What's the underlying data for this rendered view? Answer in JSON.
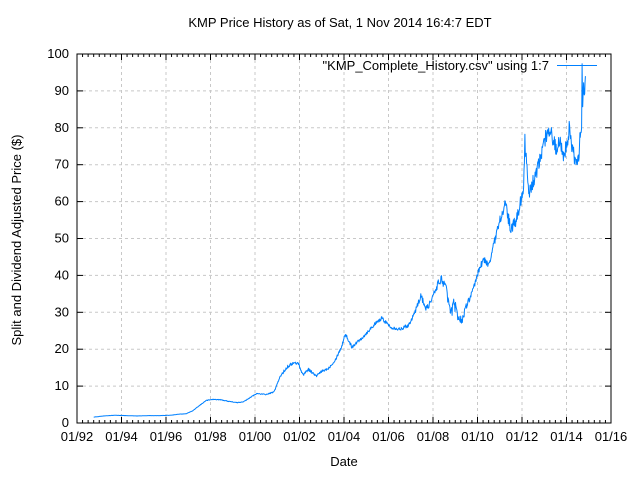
{
  "chart_data": {
    "type": "line",
    "title": "KMP Price History as of Sat, 1 Nov 2014 16:4:7 EDT",
    "xlabel": "Date",
    "ylabel": "Split and Dividend Adjusted Price ($)",
    "legend": {
      "label": "\"KMP_Complete_History.csv\" using 1:7",
      "position": "top-right-inside"
    },
    "grid": {
      "show": true,
      "style": "dashed"
    },
    "colors": {
      "line": "#0080ff",
      "grid": "#c8c8c8",
      "axis": "#000000",
      "background": "#ffffff"
    },
    "axes": {
      "x": {
        "min": 1992,
        "max": 2016,
        "major_step_years": 2,
        "minor_step_years": 0.25,
        "ticks": [
          {
            "year": 1992,
            "label": "01/92"
          },
          {
            "year": 1994,
            "label": "01/94"
          },
          {
            "year": 1996,
            "label": "01/96"
          },
          {
            "year": 1998,
            "label": "01/98"
          },
          {
            "year": 2000,
            "label": "01/00"
          },
          {
            "year": 2002,
            "label": "01/02"
          },
          {
            "year": 2004,
            "label": "01/04"
          },
          {
            "year": 2006,
            "label": "01/06"
          },
          {
            "year": 2008,
            "label": "01/08"
          },
          {
            "year": 2010,
            "label": "01/10"
          },
          {
            "year": 2012,
            "label": "01/12"
          },
          {
            "year": 2014,
            "label": "01/14"
          },
          {
            "year": 2016,
            "label": "01/16"
          }
        ]
      },
      "y": {
        "min": 0,
        "max": 100,
        "ticks": [
          {
            "value": 0,
            "label": "0"
          },
          {
            "value": 10,
            "label": "10"
          },
          {
            "value": 20,
            "label": "20"
          },
          {
            "value": 30,
            "label": "30"
          },
          {
            "value": 40,
            "label": "40"
          },
          {
            "value": 50,
            "label": "50"
          },
          {
            "value": 60,
            "label": "60"
          },
          {
            "value": 70,
            "label": "70"
          },
          {
            "value": 80,
            "label": "80"
          },
          {
            "value": 90,
            "label": "90"
          },
          {
            "value": 100,
            "label": "100"
          }
        ]
      }
    },
    "series": [
      {
        "name": "\"KMP_Complete_History.csv\" using 1:7",
        "noise_pct": 0.02,
        "points_format": [
          "year_decimal",
          "price_usd",
          "volatility_multiplier"
        ],
        "points": [
          [
            1992.75,
            1.6,
            0.5
          ],
          [
            1993.2,
            1.9,
            0.5
          ],
          [
            1993.7,
            2.1,
            0.5
          ],
          [
            1994.2,
            2.0,
            0.5
          ],
          [
            1994.7,
            1.9,
            0.5
          ],
          [
            1995.2,
            2.0,
            0.5
          ],
          [
            1995.7,
            2.0,
            0.5
          ],
          [
            1996.2,
            2.1,
            0.5
          ],
          [
            1996.6,
            2.4,
            0.5
          ],
          [
            1996.9,
            2.5,
            0.6
          ],
          [
            1997.2,
            3.3,
            0.8
          ],
          [
            1997.5,
            4.7,
            0.8
          ],
          [
            1997.8,
            6.1,
            0.8
          ],
          [
            1998.1,
            6.4,
            0.7
          ],
          [
            1998.45,
            6.3,
            0.7
          ],
          [
            1998.8,
            5.9,
            0.8
          ],
          [
            1999.2,
            5.5,
            0.8
          ],
          [
            1999.5,
            5.8,
            0.7
          ],
          [
            1999.8,
            7.0,
            0.8
          ],
          [
            2000.1,
            8.0,
            0.8
          ],
          [
            2000.5,
            7.7,
            0.8
          ],
          [
            2000.85,
            8.4,
            0.9
          ],
          [
            2001.15,
            12.8,
            1.3
          ],
          [
            2001.45,
            15.2,
            1.3
          ],
          [
            2001.7,
            16.2,
            1.2
          ],
          [
            2001.95,
            16.2,
            1.2
          ],
          [
            2002.15,
            13.0,
            1.4
          ],
          [
            2002.4,
            14.6,
            1.3
          ],
          [
            2002.75,
            12.7,
            1.3
          ],
          [
            2003.0,
            14.0,
            1.1
          ],
          [
            2003.3,
            14.8,
            1.0
          ],
          [
            2003.6,
            17.0,
            1.0
          ],
          [
            2003.9,
            20.8,
            1.0
          ],
          [
            2004.05,
            24.2,
            1.0
          ],
          [
            2004.35,
            20.6,
            1.0
          ],
          [
            2004.9,
            23.6,
            0.9
          ],
          [
            2005.3,
            26.3,
            0.9
          ],
          [
            2005.7,
            28.4,
            0.9
          ],
          [
            2006.1,
            26.0,
            0.9
          ],
          [
            2006.5,
            25.4,
            0.8
          ],
          [
            2006.9,
            26.5,
            0.9
          ],
          [
            2007.2,
            30.2,
            1.0
          ],
          [
            2007.45,
            34.5,
            1.2
          ],
          [
            2007.7,
            30.9,
            1.3
          ],
          [
            2007.95,
            33.4,
            1.4
          ],
          [
            2008.2,
            37.5,
            1.5
          ],
          [
            2008.4,
            39.2,
            1.6
          ],
          [
            2008.6,
            36.0,
            1.8
          ],
          [
            2008.8,
            29.5,
            2.4
          ],
          [
            2008.95,
            32.5,
            2.4
          ],
          [
            2009.15,
            28.5,
            2.2
          ],
          [
            2009.3,
            27.8,
            1.8
          ],
          [
            2009.55,
            32.6,
            1.4
          ],
          [
            2009.8,
            35.8,
            1.2
          ],
          [
            2010.05,
            41.2,
            1.2
          ],
          [
            2010.25,
            44.3,
            1.1
          ],
          [
            2010.5,
            42.8,
            1.1
          ],
          [
            2010.75,
            48.8,
            1.1
          ],
          [
            2011.05,
            56.0,
            1.2
          ],
          [
            2011.25,
            59.3,
            1.3
          ],
          [
            2011.5,
            52.3,
            1.5
          ],
          [
            2011.75,
            55.0,
            1.4
          ],
          [
            2011.95,
            60.5,
            1.4
          ],
          [
            2012.07,
            64.5,
            1.4
          ],
          [
            2012.13,
            76.0,
            1.5
          ],
          [
            2012.3,
            61.8,
            1.7
          ],
          [
            2012.55,
            66.2,
            1.5
          ],
          [
            2012.8,
            71.0,
            1.4
          ],
          [
            2013.0,
            76.0,
            1.4
          ],
          [
            2013.2,
            80.3,
            1.4
          ],
          [
            2013.4,
            76.8,
            1.5
          ],
          [
            2013.55,
            73.6,
            1.5
          ],
          [
            2013.7,
            77.4,
            1.4
          ],
          [
            2013.88,
            72.6,
            1.5
          ],
          [
            2014.02,
            76.2,
            1.5
          ],
          [
            2014.12,
            79.4,
            1.5
          ],
          [
            2014.3,
            73.5,
            1.5
          ],
          [
            2014.45,
            69.8,
            1.4
          ],
          [
            2014.55,
            71.5,
            1.3
          ],
          [
            2014.62,
            78.5,
            1.3
          ],
          [
            2014.68,
            80.0,
            1.0
          ],
          [
            2014.7,
            97.3,
            0.3
          ],
          [
            2014.73,
            84.5,
            0.8
          ],
          [
            2014.77,
            92.5,
            0.8
          ],
          [
            2014.8,
            88.0,
            0.6
          ],
          [
            2014.85,
            94.0,
            0.3
          ]
        ]
      }
    ]
  }
}
